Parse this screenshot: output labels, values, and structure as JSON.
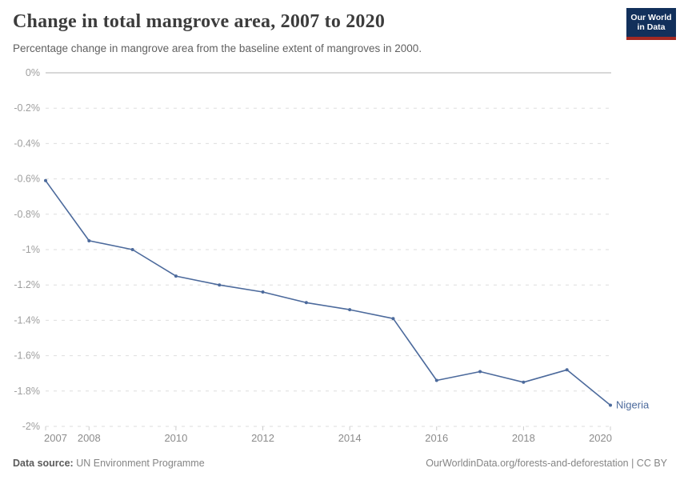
{
  "header": {
    "title": "Change in total mangrove area, 2007 to 2020",
    "subtitle": "Percentage change in mangrove area from the baseline extent of mangroves in 2000.",
    "logo": {
      "line1": "Our World",
      "line2": "in Data"
    }
  },
  "chart_data": {
    "type": "line",
    "title": "Change in total mangrove area, 2007 to 2020",
    "xlabel": "",
    "ylabel": "Percentage change in mangrove area",
    "x": [
      2007,
      2008,
      2009,
      2010,
      2011,
      2012,
      2013,
      2014,
      2015,
      2016,
      2017,
      2018,
      2019,
      2020
    ],
    "series": [
      {
        "name": "Nigeria",
        "values": [
          -0.61,
          -0.95,
          -1.0,
          -1.15,
          -1.2,
          -1.24,
          -1.3,
          -1.34,
          -1.39,
          -1.74,
          -1.69,
          -1.75,
          -1.68,
          -1.88
        ],
        "color": "#4C6A9C"
      }
    ],
    "end_label": "Nigeria",
    "ylim": [
      -2,
      0
    ],
    "xlim": [
      2007,
      2020
    ],
    "yticks": [
      {
        "v": 0,
        "label": "0%"
      },
      {
        "v": -0.2,
        "label": "-0.2%"
      },
      {
        "v": -0.4,
        "label": "-0.4%"
      },
      {
        "v": -0.6,
        "label": "-0.6%"
      },
      {
        "v": -0.8,
        "label": "-0.8%"
      },
      {
        "v": -1,
        "label": "-1%"
      },
      {
        "v": -1.2,
        "label": "-1.2%"
      },
      {
        "v": -1.4,
        "label": "-1.4%"
      },
      {
        "v": -1.6,
        "label": "-1.6%"
      },
      {
        "v": -1.8,
        "label": "-1.8%"
      },
      {
        "v": -2,
        "label": "-2%"
      }
    ],
    "xticks": [
      2007,
      2008,
      2010,
      2012,
      2014,
      2016,
      2018,
      2020
    ],
    "grid": true,
    "legend_position": "end-of-line"
  },
  "footer": {
    "source_label": "Data source:",
    "source": " UN Environment Programme",
    "link": "OurWorldinData.org/forests-and-deforestation | CC BY"
  },
  "colors": {
    "line": "#4C6A9C",
    "zero_line": "#cccccc",
    "gridline": "#dedede",
    "tick": "#cccccc",
    "y_label": "#9e9e9e",
    "x_label": "#8c8c8c",
    "title": "#3c3c3c",
    "subtitle": "#616161",
    "logo_bg": "#12305b",
    "logo_stripe": "#a32922"
  }
}
